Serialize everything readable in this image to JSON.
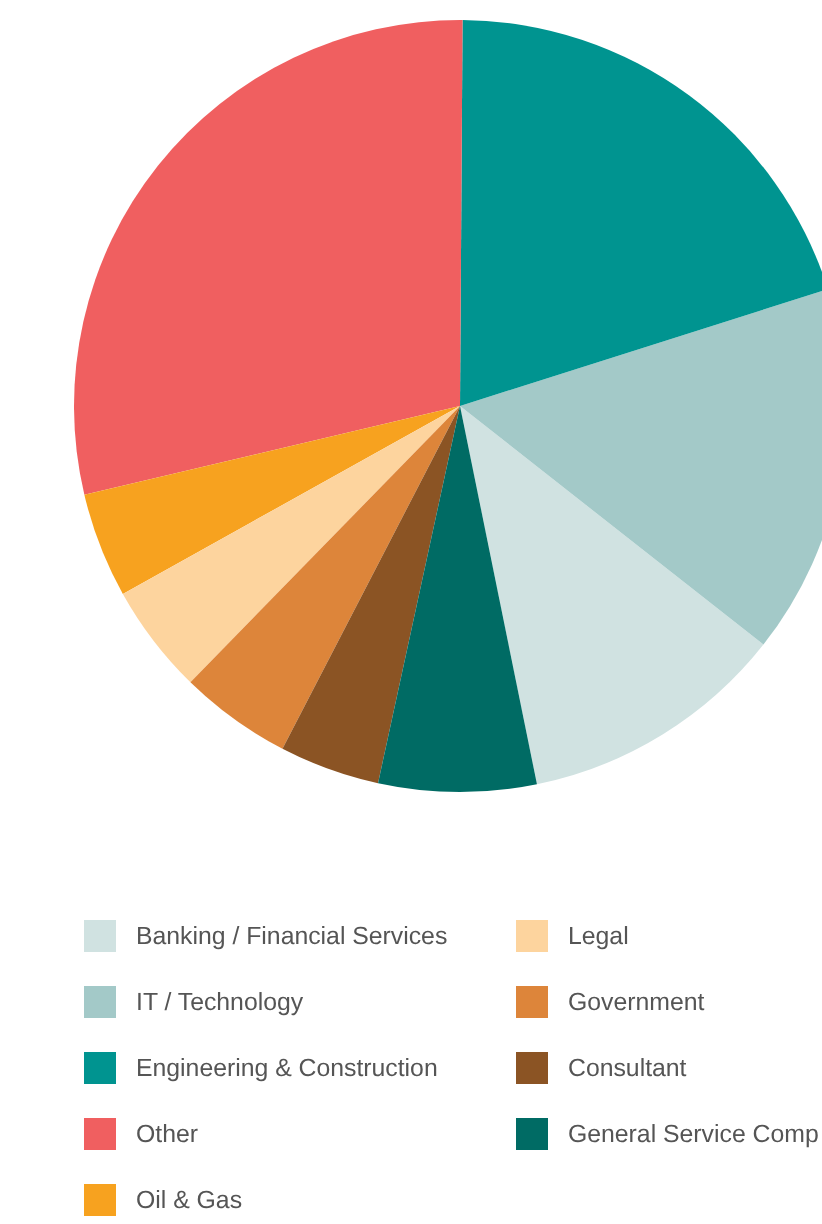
{
  "chart_data": {
    "type": "pie",
    "legend": "bottom",
    "categories": [
      "Banking / Financial Services",
      "IT / Technology",
      "Engineering & Construction",
      "Other",
      "Oil & Gas",
      "Legal",
      "Government",
      "Consultant",
      "General Service Comp"
    ],
    "values": [
      11.2,
      15.5,
      20,
      28.8,
      4.4,
      4.6,
      4.7,
      4.2,
      6.6
    ],
    "colors": [
      "#d0e2e1",
      "#a3c9c8",
      "#009490",
      "#f05f60",
      "#f7a21f",
      "#fdd49e",
      "#dd853a",
      "#8b5424",
      "#006b64"
    ]
  }
}
